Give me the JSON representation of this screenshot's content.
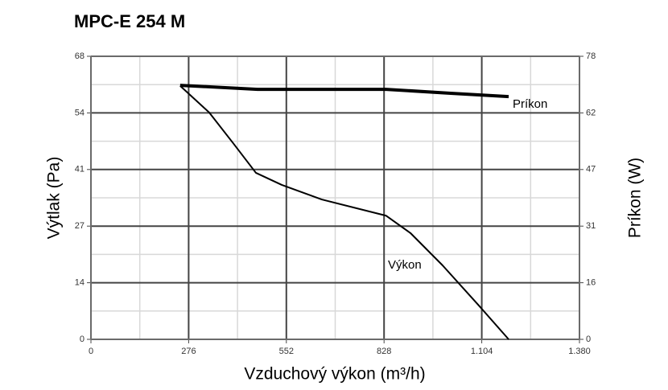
{
  "chart_data": {
    "type": "line",
    "title": "MPC-E 254 M",
    "xlabel": "Vzduchový výkon (m³/h)",
    "ylabel": "Výtlak (Pa)",
    "y2label": "Príkon (W)",
    "xlim": [
      0,
      1380
    ],
    "xticks": [
      0,
      276,
      552,
      828,
      {
        "value": 1104,
        "label": "1.104"
      },
      {
        "value": 1380,
        "label": "1.380"
      }
    ],
    "xminor": [
      138,
      414,
      690,
      966,
      1242
    ],
    "ylim": [
      0,
      68
    ],
    "yticks": [
      0,
      {
        "value": 13.6,
        "label": "14"
      },
      {
        "value": 27.2,
        "label": "27"
      },
      {
        "value": 40.8,
        "label": "41"
      },
      {
        "value": 54.4,
        "label": "54"
      },
      68
    ],
    "yminor": [
      6.8,
      20.4,
      34,
      47.6,
      61.2
    ],
    "y2lim": [
      0,
      78
    ],
    "y2ticks": [
      0,
      {
        "value": 15.6,
        "label": "16"
      },
      {
        "value": 31.2,
        "label": "31"
      },
      {
        "value": 46.8,
        "label": "47"
      },
      {
        "value": 62.4,
        "label": "62"
      },
      78
    ],
    "grid": true,
    "series": [
      {
        "name": "Výkon",
        "color": "#000000",
        "axis": "y",
        "x": [
          252,
          334,
          402,
          466,
          539,
          652,
          834,
          903,
          993,
          1096,
          1180
        ],
        "values": [
          60.9,
          54.5,
          47.1,
          40.0,
          37.1,
          33.6,
          29.7,
          25.5,
          17.8,
          8.1,
          0
        ]
      },
      {
        "name": "Príkon",
        "color": "#000000",
        "axis": "y2",
        "x": [
          252,
          471,
          834,
          1016,
          1180
        ],
        "values": [
          70.0,
          68.9,
          68.9,
          67.8,
          66.9
        ]
      }
    ]
  }
}
